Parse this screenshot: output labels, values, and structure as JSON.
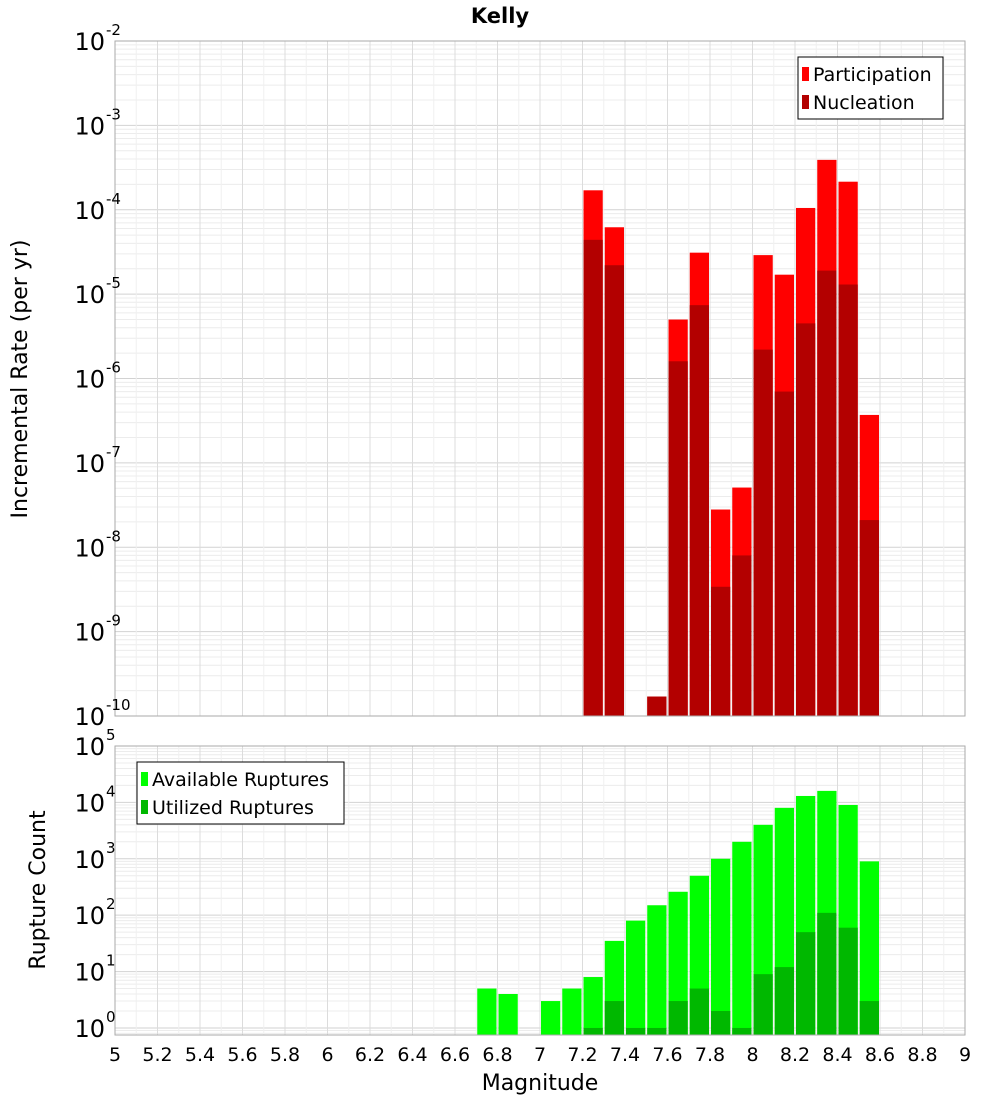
{
  "chart_data": [
    {
      "type": "bar",
      "title": "Kelly",
      "ylabel": "Incremental Rate (per yr)",
      "xlabel": "",
      "y_scale": "log",
      "ylim": [
        1e-10,
        0.01
      ],
      "xlim": [
        5,
        9
      ],
      "legend_position": "top-right",
      "grid": true,
      "y_tick_exponents": [
        "-10",
        "-9",
        "-8",
        "-7",
        "-6",
        "-5",
        "-4",
        "-3",
        "-2"
      ],
      "series": [
        {
          "name": "Participation",
          "color": "#ff0000",
          "x": [
            7.25,
            7.35,
            7.55,
            7.65,
            7.75,
            7.85,
            7.95,
            8.05,
            8.15,
            8.25,
            8.35,
            8.45,
            8.55
          ],
          "values": [
            0.00017,
            6.2e-05,
            1.7e-10,
            5e-06,
            3.1e-05,
            2.8e-08,
            5.1e-08,
            2.9e-05,
            1.7e-05,
            0.000105,
            0.00039,
            0.000215,
            3.7e-07
          ]
        },
        {
          "name": "Nucleation",
          "color": "#b30000",
          "x": [
            7.25,
            7.35,
            7.55,
            7.65,
            7.75,
            7.85,
            7.95,
            8.05,
            8.15,
            8.25,
            8.35,
            8.45,
            8.55
          ],
          "values": [
            4.4e-05,
            2.2e-05,
            1.7e-10,
            1.6e-06,
            7.4e-06,
            3.4e-09,
            8e-09,
            2.2e-06,
            7e-07,
            4.5e-06,
            1.9e-05,
            1.3e-05,
            2.1e-08
          ]
        }
      ]
    },
    {
      "type": "bar",
      "title": "",
      "ylabel": "Rupture Count",
      "xlabel": "Magnitude",
      "y_scale": "log",
      "ylim": [
        0.75,
        100000.0
      ],
      "xlim": [
        5,
        9
      ],
      "legend_position": "top-left",
      "grid": true,
      "x_ticks": [
        "5",
        "5.2",
        "5.4",
        "5.6",
        "5.8",
        "6",
        "6.2",
        "6.4",
        "6.6",
        "6.8",
        "7",
        "7.2",
        "7.4",
        "7.6",
        "7.8",
        "8",
        "8.2",
        "8.4",
        "8.6",
        "8.8",
        "9"
      ],
      "y_tick_exponents": [
        "0",
        "1",
        "2",
        "3",
        "4",
        "5"
      ],
      "series": [
        {
          "name": "Available Ruptures",
          "color": "#00ff00",
          "x": [
            6.75,
            6.85,
            7.05,
            7.15,
            7.25,
            7.35,
            7.45,
            7.55,
            7.65,
            7.75,
            7.85,
            7.95,
            8.05,
            8.15,
            8.25,
            8.35,
            8.45,
            8.55
          ],
          "values": [
            5,
            4,
            3,
            5,
            8,
            35,
            80,
            150,
            260,
            500,
            1000,
            2000,
            4000,
            8000,
            13000,
            16000,
            9000,
            900
          ]
        },
        {
          "name": "Utilized Ruptures",
          "color": "#00b800",
          "x": [
            7.25,
            7.35,
            7.45,
            7.55,
            7.65,
            7.75,
            7.85,
            7.95,
            8.05,
            8.15,
            8.25,
            8.35,
            8.45,
            8.55
          ],
          "values": [
            1,
            3,
            1,
            1,
            3,
            5,
            2,
            1,
            9,
            12,
            50,
            110,
            60,
            3
          ]
        }
      ]
    }
  ]
}
